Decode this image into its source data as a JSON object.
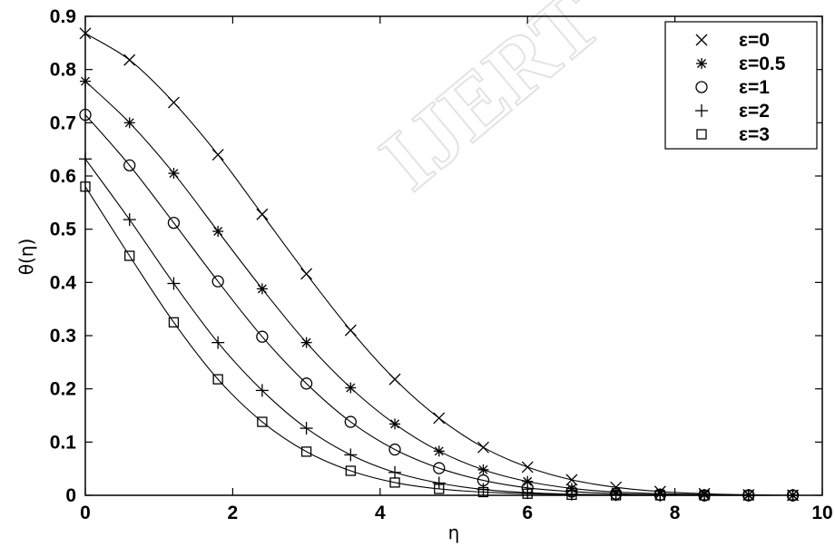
{
  "chart_data": {
    "type": "line",
    "title": "",
    "xlabel": "η",
    "ylabel": "θ(η)",
    "xlim": [
      0,
      10
    ],
    "ylim": [
      0,
      0.9
    ],
    "xticks": [
      "0",
      "2",
      "4",
      "6",
      "8",
      "10"
    ],
    "yticks": [
      "0",
      "0.1",
      "0.2",
      "0.3",
      "0.4",
      "0.5",
      "0.6",
      "0.7",
      "0.8",
      "0.9"
    ],
    "grid": false,
    "legend_position": "top-right",
    "watermark": "IJERT",
    "marker_x": [
      0,
      0.6,
      1.2,
      1.8,
      2.4,
      3.0,
      3.6,
      4.2,
      4.8,
      5.4,
      6.0,
      6.6,
      7.2,
      7.8,
      8.4,
      9.0,
      9.6
    ],
    "series": [
      {
        "name": "ε=0",
        "marker": "x",
        "values": [
          0.868,
          0.818,
          0.738,
          0.64,
          0.528,
          0.416,
          0.31,
          0.218,
          0.145,
          0.09,
          0.053,
          0.029,
          0.015,
          0.007,
          0.003,
          0.001,
          0.0
        ]
      },
      {
        "name": "ε=0.5",
        "marker": "star",
        "values": [
          0.778,
          0.7,
          0.605,
          0.496,
          0.388,
          0.287,
          0.202,
          0.134,
          0.083,
          0.048,
          0.026,
          0.013,
          0.006,
          0.003,
          0.001,
          0.0,
          0.0
        ]
      },
      {
        "name": "ε=1",
        "marker": "circle",
        "values": [
          0.715,
          0.62,
          0.512,
          0.402,
          0.298,
          0.21,
          0.138,
          0.086,
          0.051,
          0.028,
          0.014,
          0.007,
          0.003,
          0.001,
          0.0,
          0.0,
          0.0
        ]
      },
      {
        "name": "ε=2",
        "marker": "plus",
        "values": [
          0.632,
          0.518,
          0.398,
          0.287,
          0.197,
          0.126,
          0.076,
          0.043,
          0.023,
          0.011,
          0.005,
          0.002,
          0.001,
          0.0,
          0.0,
          0.0,
          0.0
        ]
      },
      {
        "name": "ε=3",
        "marker": "square",
        "values": [
          0.58,
          0.45,
          0.325,
          0.218,
          0.138,
          0.082,
          0.046,
          0.024,
          0.012,
          0.006,
          0.003,
          0.001,
          0.0,
          0.0,
          0.0,
          0.0,
          0.0
        ]
      }
    ]
  }
}
